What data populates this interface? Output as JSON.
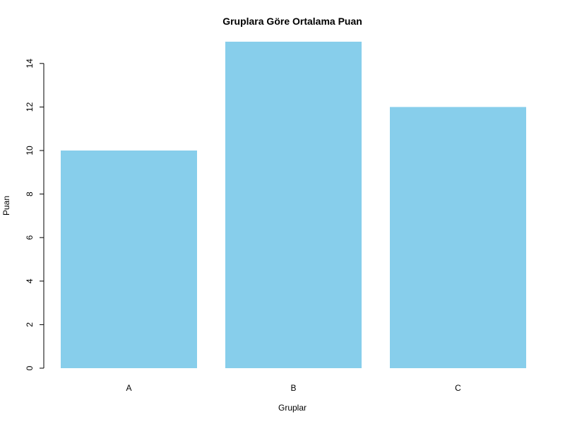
{
  "chart_data": {
    "type": "bar",
    "title": "Gruplara Göre Ortalama Puan",
    "xlabel": "Gruplar",
    "ylabel": "Puan",
    "categories": [
      "A",
      "B",
      "C"
    ],
    "values": [
      10,
      15,
      12
    ],
    "ylim": [
      0,
      15
    ],
    "yticks": [
      0,
      2,
      4,
      6,
      8,
      10,
      12,
      14
    ],
    "bar_color": "#87CEEB",
    "grid": false,
    "legend": "none"
  }
}
